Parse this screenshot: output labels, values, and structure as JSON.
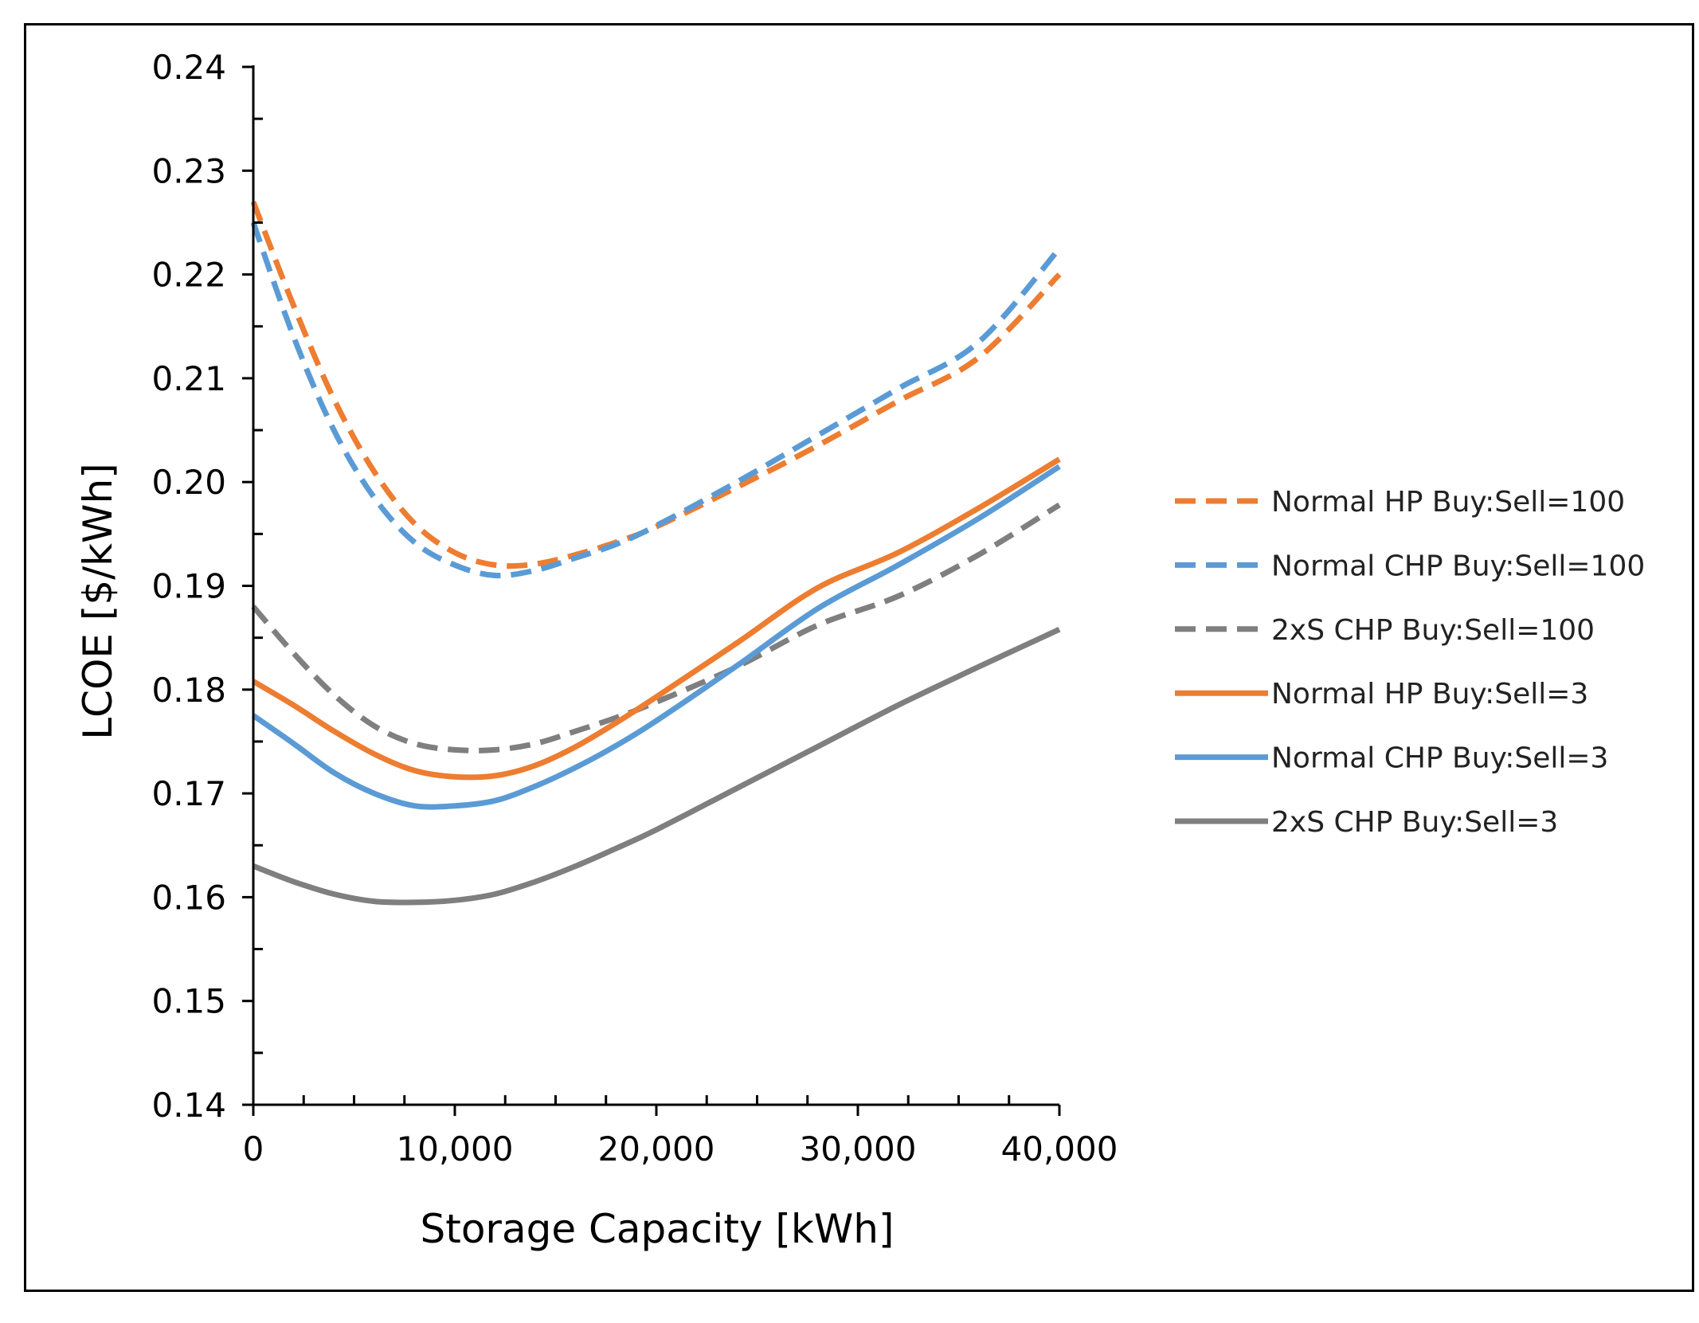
{
  "chart_data": {
    "type": "line",
    "title": "",
    "xlabel": "Storage Capacity [kWh]",
    "ylabel": "LCOE [$/kWh]",
    "xlim": [
      0,
      40000
    ],
    "ylim": [
      0.14,
      0.24
    ],
    "grid": false,
    "legend_position": "right",
    "x_ticks": [
      0,
      10000,
      20000,
      30000,
      40000
    ],
    "x_tick_labels": [
      "0",
      "10,000",
      "20,000",
      "30,000",
      "40,000"
    ],
    "x_tick_colors": [
      "#000000",
      "#ff0000",
      "#000000",
      "#000000",
      "#000000"
    ],
    "y_ticks": [
      0.14,
      0.15,
      0.16,
      0.17,
      0.18,
      0.19,
      0.2,
      0.21,
      0.22,
      0.23,
      0.24
    ],
    "y_tick_labels": [
      "0.14",
      "0.15",
      "0.16",
      "0.17",
      "0.18",
      "0.19",
      "0.20",
      "0.21",
      "0.22",
      "0.23",
      "0.24"
    ],
    "x": [
      0,
      2000,
      4000,
      6000,
      8000,
      10000,
      12000,
      14000,
      16000,
      18000,
      20000,
      24000,
      28000,
      32000,
      36000,
      40000
    ],
    "series": [
      {
        "name": "Normal HP Buy:Sell=100",
        "color": "#ed7d31",
        "dash": "dashed",
        "values": [
          0.227,
          0.217,
          0.208,
          0.201,
          0.196,
          0.1932,
          0.192,
          0.1921,
          0.193,
          0.1942,
          0.1957,
          0.1995,
          0.2035,
          0.2078,
          0.212,
          0.22
        ]
      },
      {
        "name": "Normal CHP Buy:Sell=100",
        "color": "#5b9bd5",
        "dash": "dashed",
        "values": [
          0.225,
          0.214,
          0.205,
          0.1985,
          0.1942,
          0.192,
          0.191,
          0.1915,
          0.1927,
          0.194,
          0.1958,
          0.2,
          0.2045,
          0.209,
          0.2135,
          0.2225
        ]
      },
      {
        "name": "2xS CHP Buy:Sell=100",
        "color": "#7f7f7f",
        "dash": "dashed",
        "values": [
          0.188,
          0.1835,
          0.1795,
          0.1765,
          0.1748,
          0.1742,
          0.1742,
          0.1748,
          0.176,
          0.1773,
          0.1788,
          0.1822,
          0.1862,
          0.189,
          0.193,
          0.1978
        ]
      },
      {
        "name": "Normal HP Buy:Sell=3",
        "color": "#ed7d31",
        "dash": "solid",
        "values": [
          0.1808,
          0.1785,
          0.176,
          0.1738,
          0.1722,
          0.1716,
          0.1717,
          0.1727,
          0.1745,
          0.1768,
          0.1793,
          0.1845,
          0.1898,
          0.1932,
          0.1975,
          0.2022
        ]
      },
      {
        "name": "Normal CHP Buy:Sell=3",
        "color": "#5b9bd5",
        "dash": "solid",
        "values": [
          0.1775,
          0.1748,
          0.172,
          0.17,
          0.1688,
          0.1688,
          0.1693,
          0.1707,
          0.1725,
          0.1746,
          0.177,
          0.1823,
          0.1878,
          0.192,
          0.1965,
          0.2015
        ]
      },
      {
        "name": "2xS CHP Buy:Sell=3",
        "color": "#7f7f7f",
        "dash": "solid",
        "values": [
          0.163,
          0.1615,
          0.1603,
          0.1596,
          0.1595,
          0.1597,
          0.1603,
          0.1615,
          0.163,
          0.1647,
          0.1665,
          0.1705,
          0.1745,
          0.1785,
          0.1822,
          0.1858
        ]
      }
    ]
  }
}
